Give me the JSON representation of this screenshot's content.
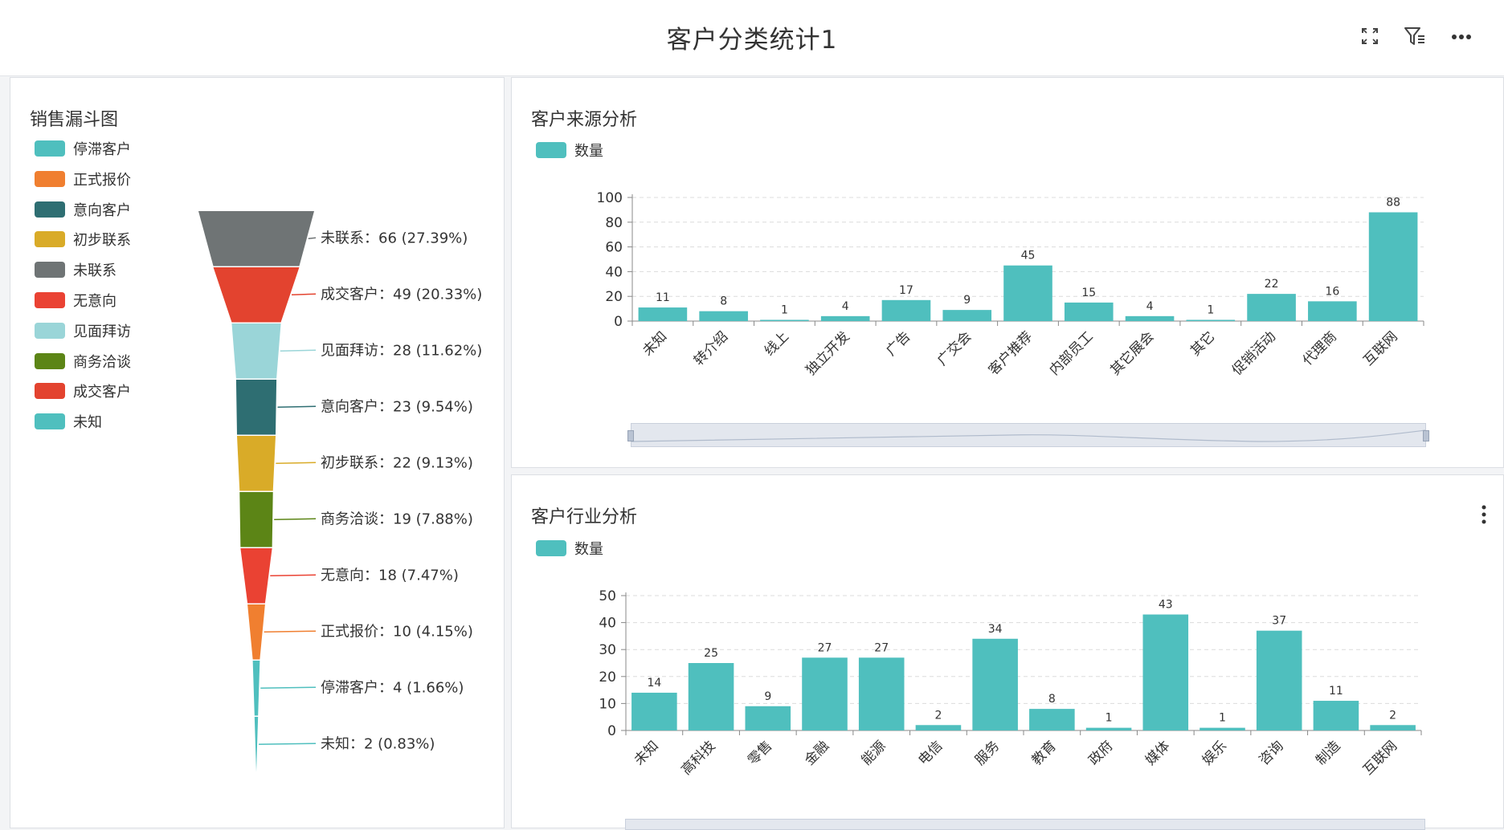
{
  "header": {
    "title": "客户分类统计1",
    "icons": [
      "fullscreen-icon",
      "filter-icon",
      "more-icon"
    ]
  },
  "funnel_panel": {
    "title": "销售漏斗图",
    "legend": [
      {
        "label": "停滞客户",
        "color": "#4fbfbe"
      },
      {
        "label": "正式报价",
        "color": "#f07f30"
      },
      {
        "label": "意向客户",
        "color": "#2e6e72"
      },
      {
        "label": "初步联系",
        "color": "#d9ab28"
      },
      {
        "label": "未联系",
        "color": "#6f7475"
      },
      {
        "label": "无意向",
        "color": "#ea4233"
      },
      {
        "label": "见面拜访",
        "color": "#9ad5d8"
      },
      {
        "label": "商务洽谈",
        "color": "#5c8516"
      },
      {
        "label": "成交客户",
        "color": "#e3432f"
      },
      {
        "label": "未知",
        "color": "#4fbfbe"
      }
    ]
  },
  "source_panel": {
    "title": "客户来源分析",
    "legend_label": "数量",
    "color": "#4fbfbe"
  },
  "industry_panel": {
    "title": "客户行业分析",
    "legend_label": "数量",
    "color": "#4fbfbe",
    "menu_icon": "vertical-dots-icon"
  },
  "chart_data": [
    {
      "type": "funnel",
      "title": "销售漏斗图",
      "stages": [
        {
          "name": "未联系",
          "value": 66,
          "percent": "27.39%",
          "color": "#6f7475",
          "label": "未联系：66 (27.39%)"
        },
        {
          "name": "成交客户",
          "value": 49,
          "percent": "20.33%",
          "color": "#e3432f",
          "label": "成交客户：49 (20.33%)"
        },
        {
          "name": "见面拜访",
          "value": 28,
          "percent": "11.62%",
          "color": "#9ad5d8",
          "label": "见面拜访：28 (11.62%)"
        },
        {
          "name": "意向客户",
          "value": 23,
          "percent": "9.54%",
          "color": "#2e6e72",
          "label": "意向客户：23 (9.54%)"
        },
        {
          "name": "初步联系",
          "value": 22,
          "percent": "9.13%",
          "color": "#d9ab28",
          "label": "初步联系：22 (9.13%)"
        },
        {
          "name": "商务洽谈",
          "value": 19,
          "percent": "7.88%",
          "color": "#5c8516",
          "label": "商务洽谈：19 (7.88%)"
        },
        {
          "name": "无意向",
          "value": 18,
          "percent": "7.47%",
          "color": "#ea4233",
          "label": "无意向：18 (7.47%)"
        },
        {
          "name": "正式报价",
          "value": 10,
          "percent": "4.15%",
          "color": "#f07f30",
          "label": "正式报价：10 (4.15%)"
        },
        {
          "name": "停滞客户",
          "value": 4,
          "percent": "1.66%",
          "color": "#4fbfbe",
          "label": "停滞客户：4 (1.66%)"
        },
        {
          "name": "未知",
          "value": 2,
          "percent": "0.83%",
          "color": "#4fbfbe",
          "label": "未知：2 (0.83%)"
        }
      ]
    },
    {
      "type": "bar",
      "title": "客户来源分析",
      "series": [
        {
          "name": "数量",
          "values": [
            11,
            8,
            1,
            4,
            17,
            9,
            45,
            15,
            4,
            1,
            22,
            16,
            88
          ]
        }
      ],
      "categories": [
        "未知",
        "转介绍",
        "线上",
        "独立开发",
        "广告",
        "广交会",
        "客户推荐",
        "内部员工",
        "其它展会",
        "其它",
        "促销活动",
        "代理商",
        "互联网"
      ],
      "ylim": [
        0,
        100
      ],
      "yticks": [
        0,
        20,
        40,
        60,
        80,
        100
      ],
      "grid": true,
      "legend": "top-left"
    },
    {
      "type": "bar",
      "title": "客户行业分析",
      "series": [
        {
          "name": "数量",
          "values": [
            14,
            25,
            9,
            27,
            27,
            2,
            34,
            8,
            1,
            43,
            1,
            37,
            11,
            2
          ]
        }
      ],
      "categories": [
        "未知",
        "高科技",
        "零售",
        "金融",
        "能源",
        "电信",
        "服务",
        "教育",
        "政府",
        "媒体",
        "娱乐",
        "咨询",
        "制造",
        "互联网"
      ],
      "ylim": [
        0,
        50
      ],
      "yticks": [
        0,
        10,
        20,
        30,
        40,
        50
      ],
      "grid": true,
      "legend": "top-left"
    }
  ]
}
